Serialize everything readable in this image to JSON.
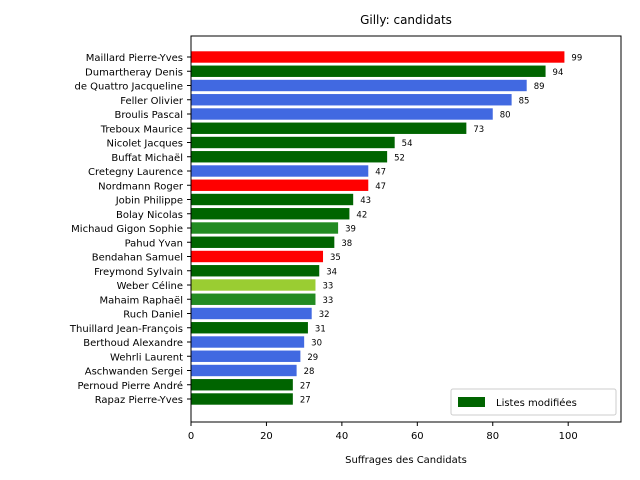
{
  "chart_data": {
    "type": "bar",
    "orientation": "horizontal",
    "title": "Gilly: candidats",
    "xlabel": "Suffrages des Candidats",
    "ylabel": "",
    "xlim": [
      0,
      114
    ],
    "xticks": [
      0,
      20,
      40,
      60,
      80,
      100
    ],
    "grid": false,
    "legend": {
      "position": "lower-right",
      "entries": [
        {
          "label": "Listes modifiées",
          "color": "#006400"
        }
      ]
    },
    "categories": [
      "Maillard Pierre-Yves",
      "Dumartheray Denis",
      "de Quattro Jacqueline",
      "Feller Olivier",
      "Broulis Pascal",
      "Treboux Maurice",
      "Nicolet Jacques",
      "Buffat Michaël",
      "Cretegny Laurence",
      "Nordmann Roger",
      "Jobin Philippe",
      "Bolay Nicolas",
      "Michaud Gigon Sophie",
      "Pahud Yvan",
      "Bendahan Samuel",
      "Freymond Sylvain",
      "Weber Céline",
      "Mahaim Raphaël",
      "Ruch Daniel",
      "Thuillard Jean-François",
      "Berthoud Alexandre",
      "Wehrli Laurent",
      "Aschwanden Sergei",
      "Pernoud Pierre André",
      "Rapaz Pierre-Yves"
    ],
    "values": [
      99,
      94,
      89,
      85,
      80,
      73,
      54,
      52,
      47,
      47,
      43,
      42,
      39,
      38,
      35,
      34,
      33,
      33,
      32,
      31,
      30,
      29,
      28,
      27,
      27
    ],
    "colors": [
      "#ff0000",
      "#006400",
      "#4169e1",
      "#4169e1",
      "#4169e1",
      "#006400",
      "#006400",
      "#006400",
      "#4169e1",
      "#ff0000",
      "#006400",
      "#006400",
      "#228b22",
      "#006400",
      "#ff0000",
      "#006400",
      "#9acd32",
      "#228b22",
      "#4169e1",
      "#006400",
      "#4169e1",
      "#4169e1",
      "#4169e1",
      "#006400",
      "#006400"
    ]
  }
}
